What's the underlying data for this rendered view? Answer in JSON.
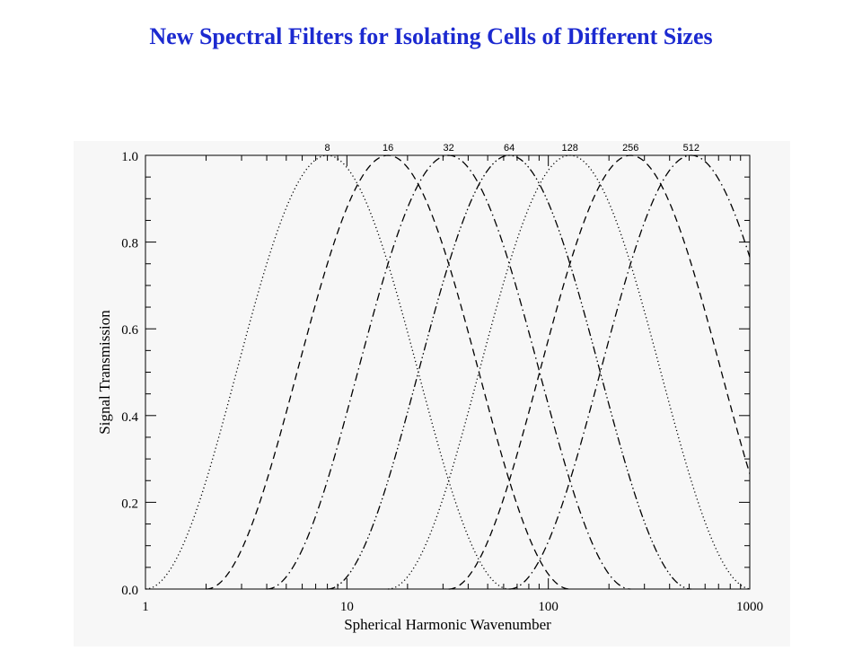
{
  "slide": {
    "title": "New Spectral Filters for Isolating Cells of Different Sizes",
    "title_color": "#1c2ad0"
  },
  "chart_data": {
    "type": "line",
    "title": "",
    "xlabel": "Spherical Harmonic Wavenumber",
    "ylabel": "Signal Transmission",
    "x_scale": "log",
    "xlim": [
      1,
      1000
    ],
    "ylim": [
      0,
      1
    ],
    "x_tick_labels": [
      "1",
      "10",
      "100",
      "1000"
    ],
    "y_tick_labels": [
      "0.0",
      "0.2",
      "0.4",
      "0.6",
      "0.8",
      "1.0"
    ],
    "grid": false,
    "line_color": "#000000",
    "background": "#f7f7f7",
    "series": [
      {
        "peak_label": "8",
        "style": "dotted",
        "x": [
          1,
          2,
          4,
          8,
          16,
          32,
          64
        ],
        "y": [
          0.0,
          0.21,
          0.79,
          1.0,
          0.79,
          0.21,
          0.0
        ]
      },
      {
        "peak_label": "16",
        "style": "dashed",
        "x": [
          2,
          4,
          8,
          16,
          32,
          64,
          128
        ],
        "y": [
          0.0,
          0.21,
          0.79,
          1.0,
          0.79,
          0.21,
          0.0
        ]
      },
      {
        "peak_label": "32",
        "style": "dash-dot",
        "x": [
          4,
          8,
          16,
          32,
          64,
          128,
          256
        ],
        "y": [
          0.0,
          0.21,
          0.79,
          1.0,
          0.79,
          0.21,
          0.0
        ]
      },
      {
        "peak_label": "64",
        "style": "dash-dot-dot",
        "x": [
          8,
          16,
          32,
          64,
          128,
          256,
          512
        ],
        "y": [
          0.0,
          0.21,
          0.79,
          1.0,
          0.79,
          0.21,
          0.0
        ]
      },
      {
        "peak_label": "128",
        "style": "dotted",
        "x": [
          16,
          32,
          64,
          128,
          256,
          512,
          1000
        ],
        "y": [
          0.0,
          0.21,
          0.79,
          1.0,
          0.79,
          0.21,
          0.0
        ]
      },
      {
        "peak_label": "256",
        "style": "dashed",
        "x": [
          32,
          64,
          128,
          256,
          512,
          1000
        ],
        "y": [
          0.0,
          0.21,
          0.79,
          1.0,
          0.79,
          0.22
        ]
      },
      {
        "peak_label": "512",
        "style": "dash-dot",
        "x": [
          64,
          128,
          256,
          512,
          1000
        ],
        "y": [
          0.0,
          0.21,
          0.79,
          1.0,
          0.72
        ]
      }
    ]
  }
}
